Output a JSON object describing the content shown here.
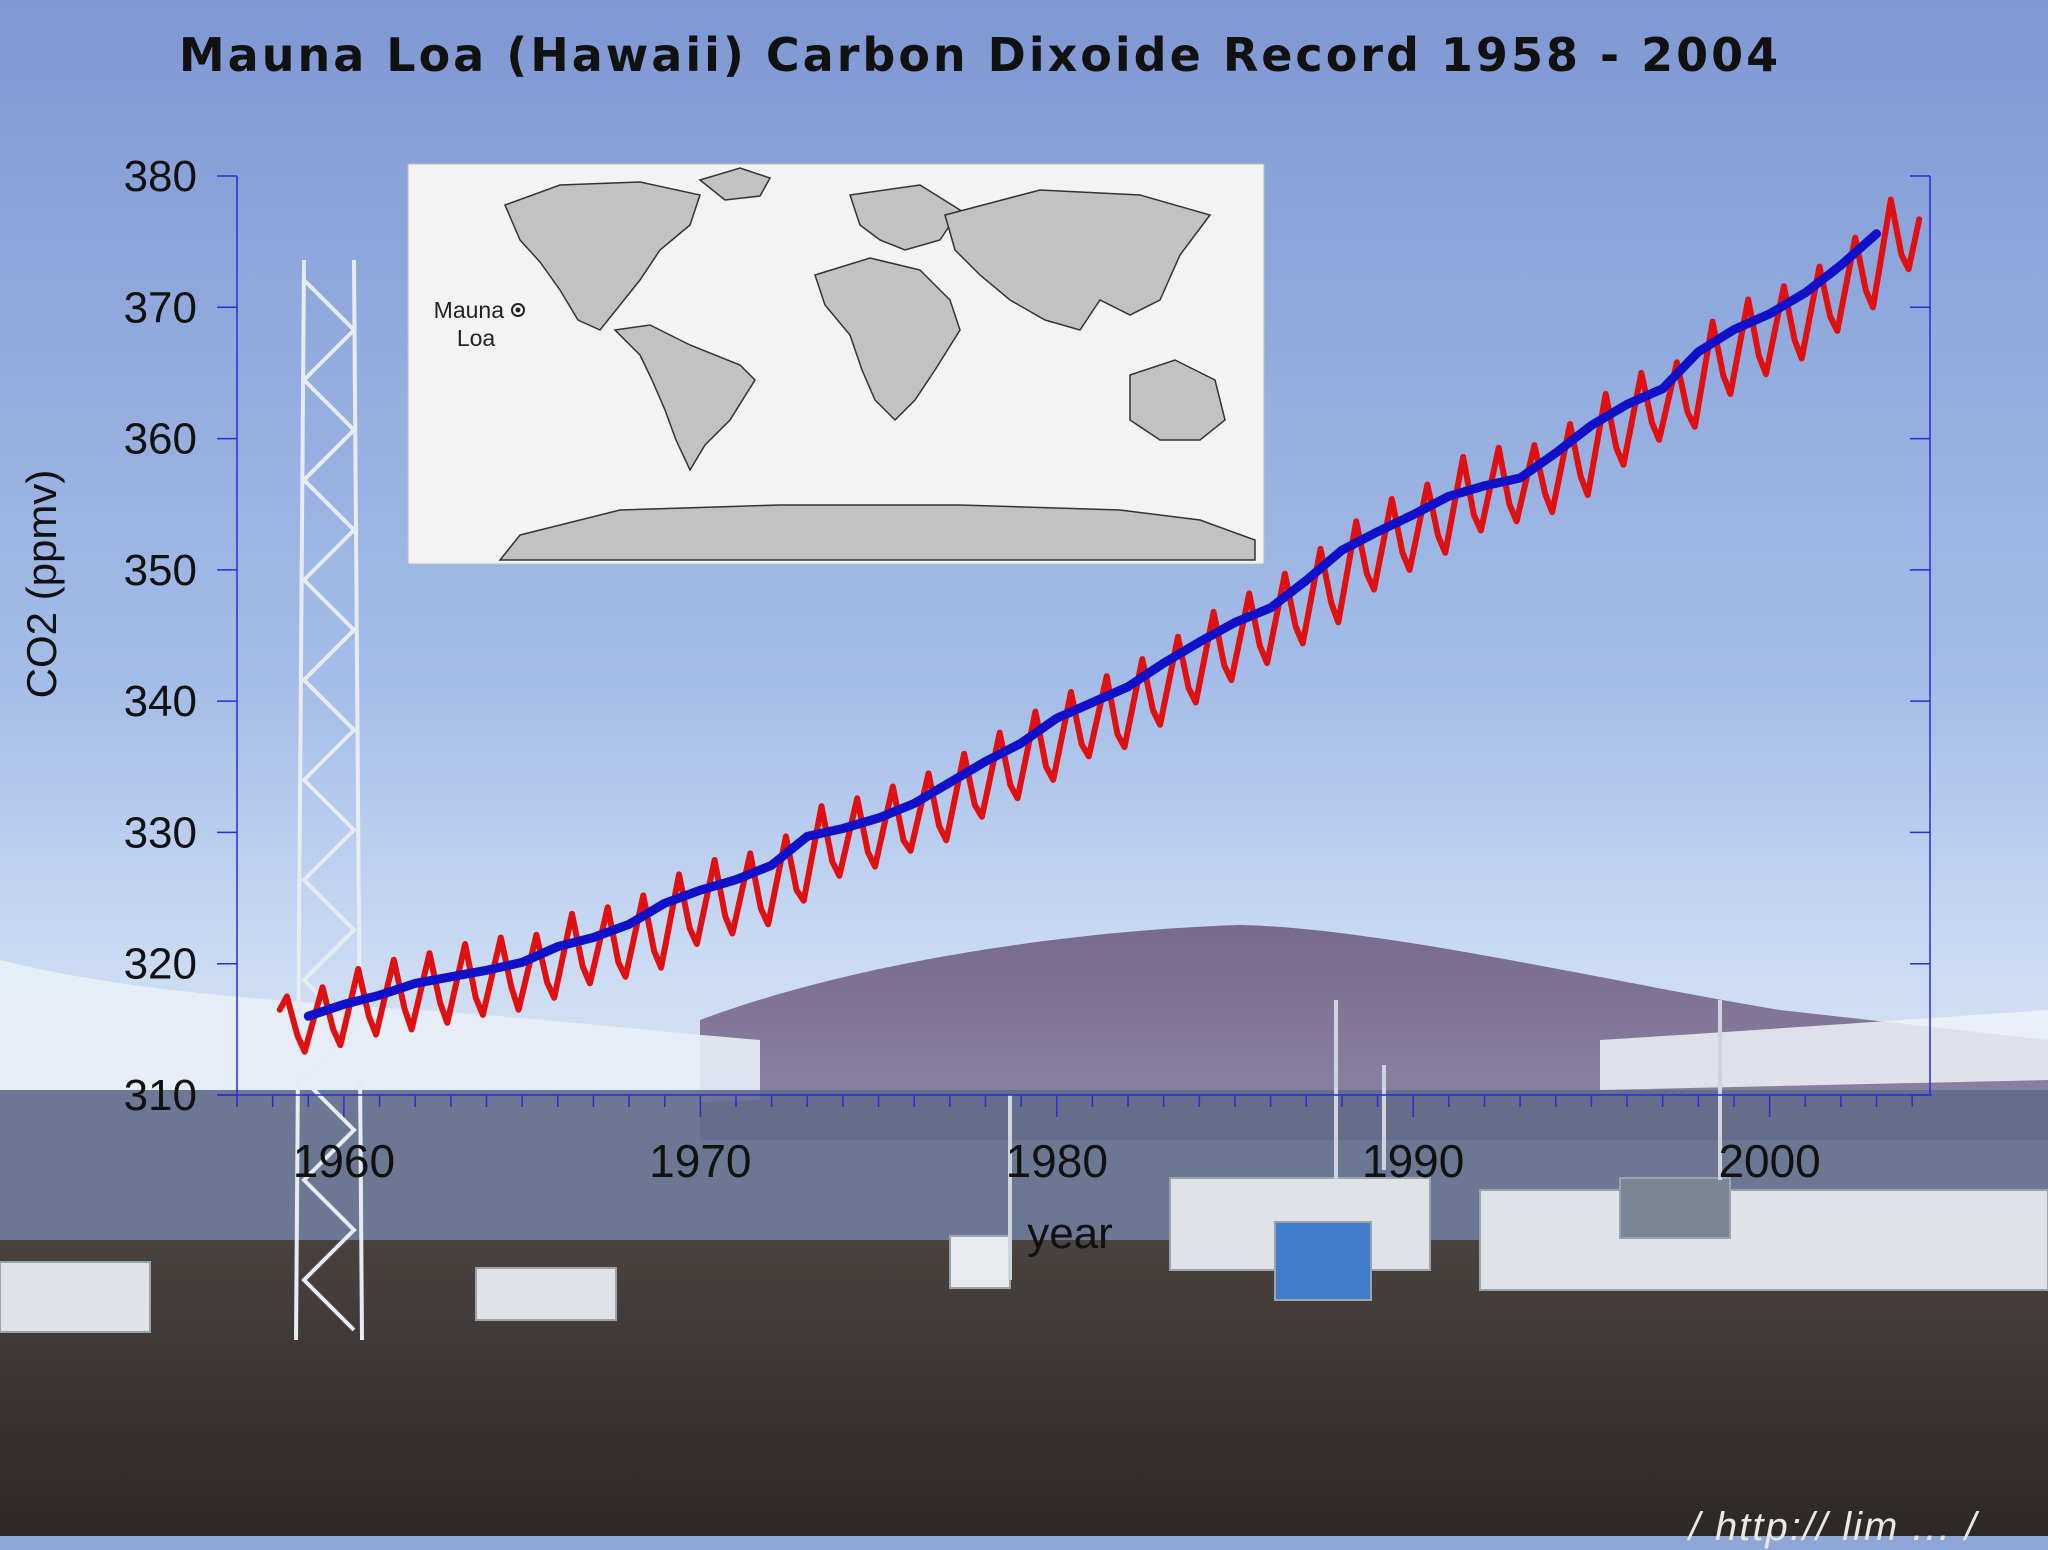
{
  "title": "Mauna Loa (Hawaii) Carbon Dixoide Record 1958 - 2004",
  "inset_map": {
    "label_line1": "Mauna",
    "label_line2": "Loa",
    "marker_icon": "location-dot-icon"
  },
  "chart_data": {
    "type": "line",
    "title": "Mauna Loa (Hawaii) Carbon Dixoide Record 1958 - 2004",
    "xlabel": "year",
    "ylabel": "CO2 (ppmv)",
    "xlim": [
      1957,
      2004.5
    ],
    "ylim": [
      310,
      380
    ],
    "xticks": [
      1960,
      1970,
      1980,
      1990,
      2000
    ],
    "yticks": [
      310,
      320,
      330,
      340,
      350,
      360,
      370,
      380
    ],
    "grid": false,
    "series": [
      {
        "kind": "monthly",
        "color": "#e01010",
        "x": [
          1958.2,
          1958.4,
          1958.7,
          1958.9,
          1959.4,
          1959.7,
          1959.9,
          1960.4,
          1960.7,
          1960.9,
          1961.4,
          1961.7,
          1961.9,
          1962.4,
          1962.7,
          1962.9,
          1963.4,
          1963.7,
          1963.9,
          1964.4,
          1964.7,
          1964.9,
          1965.4,
          1965.7,
          1965.9,
          1966.4,
          1966.7,
          1966.9,
          1967.4,
          1967.7,
          1967.9,
          1968.4,
          1968.7,
          1968.9,
          1969.4,
          1969.7,
          1969.9,
          1970.4,
          1970.7,
          1970.9,
          1971.4,
          1971.7,
          1971.9,
          1972.4,
          1972.7,
          1972.9,
          1973.4,
          1973.7,
          1973.9,
          1974.4,
          1974.7,
          1974.9,
          1975.4,
          1975.7,
          1975.9,
          1976.4,
          1976.7,
          1976.9,
          1977.4,
          1977.7,
          1977.9,
          1978.4,
          1978.7,
          1978.9,
          1979.4,
          1979.7,
          1979.9,
          1980.4,
          1980.7,
          1980.9,
          1981.4,
          1981.7,
          1981.9,
          1982.4,
          1982.7,
          1982.9,
          1983.4,
          1983.7,
          1983.9,
          1984.4,
          1984.7,
          1984.9,
          1985.4,
          1985.7,
          1985.9,
          1986.4,
          1986.7,
          1986.9,
          1987.4,
          1987.7,
          1987.9,
          1988.4,
          1988.7,
          1988.9,
          1989.4,
          1989.7,
          1989.9,
          1990.4,
          1990.7,
          1990.9,
          1991.4,
          1991.7,
          1991.9,
          1992.4,
          1992.7,
          1992.9,
          1993.4,
          1993.7,
          1993.9,
          1994.4,
          1994.7,
          1994.9,
          1995.4,
          1995.7,
          1995.9,
          1996.4,
          1996.7,
          1996.9,
          1997.4,
          1997.7,
          1997.9,
          1998.4,
          1998.7,
          1998.9,
          1999.4,
          1999.7,
          1999.9,
          2000.4,
          2000.7,
          2000.9,
          2001.4,
          2001.7,
          2001.9,
          2002.4,
          2002.7,
          2002.9,
          2003.4,
          2003.7,
          2003.9,
          2004.2
        ],
        "y": [
          316.5,
          317.5,
          314.5,
          313.3,
          318.2,
          315.0,
          313.8,
          319.6,
          316.0,
          314.6,
          320.3,
          316.6,
          315.0,
          320.8,
          317.0,
          315.5,
          321.5,
          317.4,
          316.1,
          322.0,
          318.2,
          316.5,
          322.2,
          318.6,
          317.4,
          323.8,
          319.8,
          318.5,
          324.3,
          320.1,
          319.0,
          325.2,
          321.0,
          319.7,
          326.8,
          322.7,
          321.5,
          327.9,
          323.6,
          322.3,
          328.4,
          324.2,
          323.0,
          329.7,
          325.6,
          324.8,
          332.0,
          327.8,
          326.7,
          332.6,
          328.5,
          327.4,
          333.5,
          329.4,
          328.6,
          334.5,
          330.5,
          329.4,
          336.0,
          332.1,
          331.2,
          337.6,
          333.6,
          332.6,
          339.2,
          335.0,
          334.0,
          340.7,
          336.7,
          335.8,
          341.9,
          337.5,
          336.5,
          343.2,
          339.3,
          338.2,
          344.9,
          341.0,
          339.9,
          346.8,
          342.7,
          341.6,
          348.2,
          344.2,
          342.9,
          349.7,
          345.7,
          344.4,
          351.6,
          347.5,
          346.0,
          353.7,
          349.7,
          348.5,
          355.4,
          351.3,
          350.0,
          356.5,
          352.6,
          351.3,
          358.6,
          354.2,
          353.0,
          359.3,
          355.0,
          353.7,
          359.5,
          355.8,
          354.4,
          361.1,
          357.1,
          355.7,
          363.4,
          359.3,
          358.0,
          365.0,
          361.2,
          359.9,
          365.8,
          362.0,
          360.9,
          368.9,
          364.8,
          363.4,
          370.6,
          366.3,
          364.9,
          371.6,
          367.5,
          366.1,
          373.1,
          369.3,
          368.2,
          375.3,
          371.3,
          370.0,
          378.2,
          374.0,
          372.9,
          376.7
        ]
      },
      {
        "kind": "annual_mean",
        "color": "#1010c8",
        "x": [
          1959,
          1960,
          1961,
          1962,
          1963,
          1964,
          1965,
          1966,
          1967,
          1968,
          1969,
          1970,
          1971,
          1972,
          1973,
          1974,
          1975,
          1976,
          1977,
          1978,
          1979,
          1980,
          1981,
          1982,
          1983,
          1984,
          1985,
          1986,
          1987,
          1988,
          1989,
          1990,
          1991,
          1992,
          1993,
          1994,
          1995,
          1996,
          1997,
          1998,
          1999,
          2000,
          2001,
          2002,
          2003
        ],
        "y": [
          316.0,
          316.9,
          317.6,
          318.5,
          319.0,
          319.5,
          320.1,
          321.3,
          322.0,
          323.0,
          324.6,
          325.6,
          326.4,
          327.5,
          329.7,
          330.3,
          331.1,
          332.2,
          333.8,
          335.4,
          336.8,
          338.7,
          339.9,
          341.1,
          342.9,
          344.5,
          346.0,
          347.1,
          349.2,
          351.5,
          352.9,
          354.2,
          355.6,
          356.4,
          357.0,
          358.9,
          361.0,
          362.6,
          363.8,
          366.6,
          368.3,
          369.5,
          371.1,
          373.2,
          375.6
        ]
      }
    ]
  }
}
